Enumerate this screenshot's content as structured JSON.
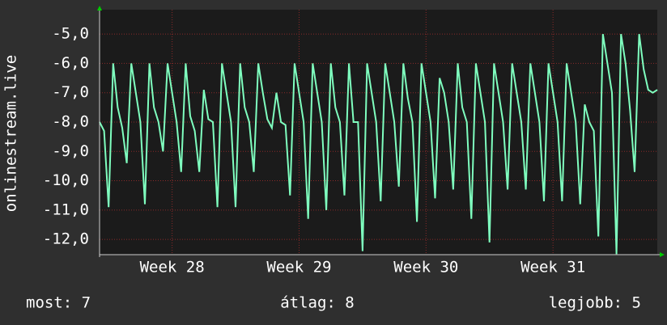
{
  "chart_data": {
    "type": "line",
    "y_label": "onlinestream.live",
    "color": "#7fffbf",
    "grid": true,
    "xlim": [
      0,
      30.75
    ],
    "xticks": [
      {
        "value": 4,
        "label": "Week 28"
      },
      {
        "value": 11,
        "label": "Week 29"
      },
      {
        "value": 18,
        "label": "Week 30"
      },
      {
        "value": 25,
        "label": "Week 31"
      }
    ],
    "ylim": [
      -12.52,
      -4.17
    ],
    "yticks": [
      {
        "value": -5,
        "label": "-5,0"
      },
      {
        "value": -6,
        "label": "-6,0"
      },
      {
        "value": -7,
        "label": "-7,0"
      },
      {
        "value": -8,
        "label": "-8,0"
      },
      {
        "value": -9,
        "label": "-9,0"
      },
      {
        "value": -10,
        "label": "-10,0"
      },
      {
        "value": -11,
        "label": "-11,0"
      },
      {
        "value": -12,
        "label": "-12,0"
      }
    ],
    "x": [
      0,
      0.25,
      0.5,
      0.75,
      1,
      1.25,
      1.5,
      1.75,
      2,
      2.25,
      2.5,
      2.75,
      3,
      3.25,
      3.5,
      3.75,
      4,
      4.25,
      4.5,
      4.75,
      5,
      5.25,
      5.5,
      5.75,
      6,
      6.25,
      6.5,
      6.75,
      7,
      7.25,
      7.5,
      7.75,
      8,
      8.25,
      8.5,
      8.75,
      9,
      9.25,
      9.5,
      9.75,
      10,
      10.25,
      10.5,
      10.75,
      11,
      11.25,
      11.5,
      11.75,
      12,
      12.25,
      12.5,
      12.75,
      13,
      13.25,
      13.5,
      13.75,
      14,
      14.25,
      14.5,
      14.75,
      15,
      15.25,
      15.5,
      15.75,
      16,
      16.25,
      16.5,
      16.75,
      17,
      17.25,
      17.5,
      17.75,
      18,
      18.25,
      18.5,
      18.75,
      19,
      19.25,
      19.5,
      19.75,
      20,
      20.25,
      20.5,
      20.75,
      21,
      21.25,
      21.5,
      21.75,
      22,
      22.25,
      22.5,
      22.75,
      23,
      23.25,
      23.5,
      23.75,
      24,
      24.25,
      24.5,
      24.75,
      25,
      25.25,
      25.5,
      25.75,
      26,
      26.25,
      26.5,
      26.75,
      27,
      27.25,
      27.5,
      27.75,
      28,
      28.25,
      28.5,
      28.75,
      29,
      29.25,
      29.5,
      29.75,
      30,
      30.25,
      30.5,
      30.75
    ],
    "values": [
      -8,
      -8.3,
      -10.9,
      -6,
      -7.5,
      -8.2,
      -9.4,
      -6,
      -7,
      -8,
      -10.8,
      -6,
      -7.5,
      -8,
      -9,
      -6,
      -7,
      -8,
      -9.7,
      -6,
      -7.8,
      -8.3,
      -9.7,
      -6.9,
      -7.9,
      -8,
      -10.9,
      -6,
      -7,
      -8,
      -10.9,
      -6,
      -7.5,
      -8,
      -9.7,
      -6,
      -7,
      -7.9,
      -8.2,
      -7,
      -8,
      -8.1,
      -10.5,
      -6,
      -7,
      -8,
      -11.3,
      -6,
      -7,
      -8,
      -11,
      -6,
      -7.5,
      -8,
      -10.5,
      -6,
      -8,
      -8,
      -12.4,
      -6,
      -7,
      -8,
      -10.7,
      -6,
      -7,
      -8,
      -10.2,
      -6,
      -7.2,
      -8,
      -11.4,
      -6,
      -7,
      -8,
      -10.6,
      -6.5,
      -7,
      -8,
      -10.3,
      -6,
      -7.5,
      -8,
      -11.3,
      -6,
      -7,
      -8,
      -12.1,
      -6,
      -7,
      -8,
      -10.3,
      -6,
      -7,
      -8,
      -10.3,
      -6,
      -7,
      -8,
      -10.7,
      -6,
      -7,
      -8,
      -10.7,
      -6,
      -7,
      -8,
      -10.8,
      -7.4,
      -8,
      -8.3,
      -11.9,
      -5,
      -6,
      -7,
      -12.5,
      -5,
      -6,
      -7.6,
      -9.7,
      -5,
      -6.2,
      -6.9,
      -7,
      -6.9
    ],
    "footer": [
      "most: 7",
      "átlag: 8",
      "legjobb: 5"
    ]
  }
}
